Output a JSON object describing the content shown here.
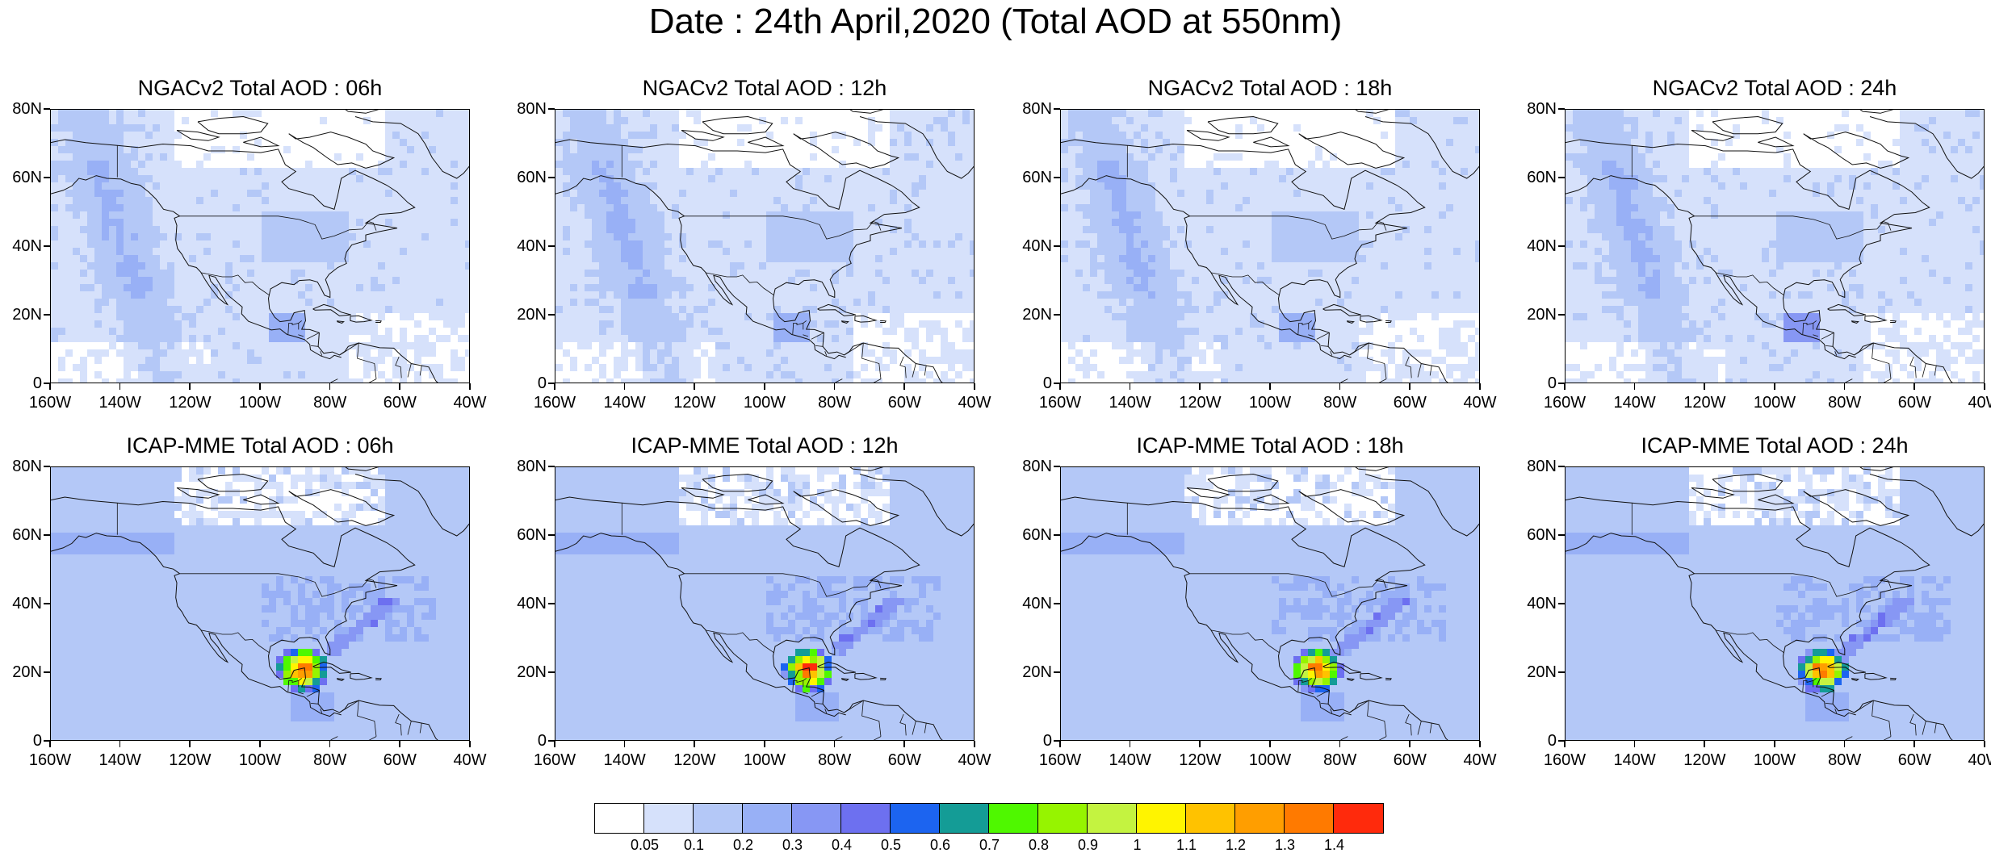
{
  "title": "Date : 24th April,2020 (Total AOD at 550nm)",
  "axes": {
    "y_ticks": [
      "80N",
      "60N",
      "40N",
      "20N",
      "0"
    ],
    "x_ticks": [
      "160W",
      "140W",
      "120W",
      "100W",
      "80W",
      "60W",
      "40W"
    ],
    "lon_range": [
      -160,
      -40
    ],
    "lat_range": [
      0,
      80
    ]
  },
  "panels": [
    {
      "title": "NGACv2 Total AOD : 06h",
      "model": "NGACv2",
      "hour": "06h"
    },
    {
      "title": "NGACv2 Total AOD : 12h",
      "model": "NGACv2",
      "hour": "12h"
    },
    {
      "title": "NGACv2 Total AOD : 18h",
      "model": "NGACv2",
      "hour": "18h"
    },
    {
      "title": "NGACv2 Total AOD : 24h",
      "model": "NGACv2",
      "hour": "24h"
    },
    {
      "title": "ICAP-MME Total AOD : 06h",
      "model": "ICAP-MME",
      "hour": "06h"
    },
    {
      "title": "ICAP-MME Total AOD : 12h",
      "model": "ICAP-MME",
      "hour": "12h"
    },
    {
      "title": "ICAP-MME Total AOD : 18h",
      "model": "ICAP-MME",
      "hour": "18h"
    },
    {
      "title": "ICAP-MME Total AOD : 24h",
      "model": "ICAP-MME",
      "hour": "24h"
    }
  ],
  "colorbar": {
    "colors": [
      "#ffffff",
      "#d6e1fb",
      "#b4c8f7",
      "#98b0f6",
      "#8797f4",
      "#6d70f0",
      "#1c64f0",
      "#149c96",
      "#4ff800",
      "#96f400",
      "#c4f340",
      "#fff400",
      "#ffc200",
      "#ff9e00",
      "#ff7a00",
      "#ff2a0c"
    ],
    "levels": [
      "0.05",
      "0.1",
      "0.2",
      "0.3",
      "0.4",
      "0.5",
      "0.6",
      "0.7",
      "0.8",
      "0.9",
      "1",
      "1.1",
      "1.2",
      "1.3",
      "1.4"
    ]
  }
}
